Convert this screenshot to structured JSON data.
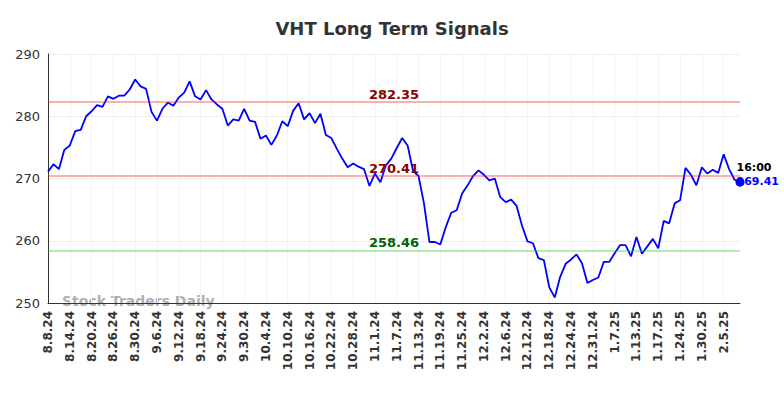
{
  "chart_data": {
    "type": "line",
    "title": "VHT Long Term Signals",
    "watermark": "Stock Traders Daily",
    "color": "#0000ff",
    "grid": true,
    "categories": [
      "8.8.24",
      null,
      null,
      null,
      "8.14.24",
      null,
      null,
      null,
      "8.20.24",
      null,
      null,
      null,
      "8.26.24",
      null,
      null,
      null,
      "8.30.24",
      null,
      null,
      null,
      "9.6.24",
      null,
      null,
      null,
      "9.12.24",
      null,
      null,
      null,
      "9.18.24",
      null,
      null,
      null,
      "9.24.24",
      null,
      null,
      null,
      "9.30.24",
      null,
      null,
      null,
      "10.4.24",
      null,
      null,
      null,
      "10.10.24",
      null,
      null,
      null,
      "10.16.24",
      null,
      null,
      null,
      "10.22.24",
      null,
      null,
      null,
      "10.28.24",
      null,
      null,
      null,
      "11.1.24",
      null,
      null,
      null,
      "11.7.24",
      null,
      null,
      null,
      "11.13.24",
      null,
      null,
      null,
      "11.19.24",
      null,
      null,
      null,
      "11.25.24",
      null,
      null,
      null,
      "12.2.24",
      null,
      null,
      null,
      "12.6.24",
      null,
      null,
      null,
      "12.12.24",
      null,
      null,
      null,
      "12.18.24",
      null,
      null,
      null,
      "12.24.24",
      null,
      null,
      null,
      "12.31.24",
      null,
      null,
      null,
      "1.7.25",
      null,
      null,
      null,
      "1.13.25",
      null,
      null,
      null,
      "1.17.25",
      null,
      null,
      null,
      "1.24.25",
      null,
      null,
      null,
      "1.30.25",
      null,
      null,
      null,
      "2.5.25",
      null,
      null,
      null
    ],
    "values": [
      271.1,
      272.3,
      271.5,
      274.6,
      275.3,
      277.6,
      277.8,
      280.0,
      280.8,
      281.8,
      281.5,
      283.2,
      282.8,
      283.3,
      283.3,
      284.3,
      285.9,
      284.8,
      284.4,
      280.7,
      279.3,
      281.2,
      282.2,
      281.7,
      283.0,
      283.8,
      285.6,
      283.2,
      282.7,
      284.2,
      282.7,
      281.9,
      281.2,
      278.5,
      279.5,
      279.3,
      281.2,
      279.3,
      279.1,
      276.4,
      276.9,
      275.4,
      276.9,
      279.2,
      278.4,
      280.9,
      282.1,
      279.5,
      280.5,
      278.9,
      280.4,
      277.0,
      276.5,
      274.8,
      273.2,
      271.8,
      272.4,
      271.9,
      271.5,
      268.8,
      270.8,
      269.4,
      272.1,
      273.2,
      274.9,
      276.5,
      275.3,
      271.2,
      270.4,
      266.0,
      259.8,
      259.8,
      259.4,
      262.2,
      264.5,
      264.9,
      267.6,
      268.9,
      270.4,
      271.3,
      270.6,
      269.7,
      270.0,
      267.0,
      266.2,
      266.6,
      265.6,
      262.4,
      259.9,
      259.6,
      257.2,
      256.9,
      252.5,
      250.9,
      254.2,
      256.3,
      257.0,
      257.8,
      256.4,
      253.2,
      253.7,
      254.1,
      256.6,
      256.6,
      258.0,
      259.3,
      259.3,
      257.5,
      260.6,
      257.9,
      259.1,
      260.3,
      258.8,
      263.2,
      262.8,
      266.0,
      266.5,
      271.7,
      270.6,
      268.9,
      271.8,
      270.8,
      271.4,
      270.9,
      273.9,
      271.5,
      269.8,
      269.41
    ],
    "end_label": "16:00",
    "reference_lines": [
      {
        "value": 282.35,
        "color": "#8b0000"
      },
      {
        "value": 270.41,
        "color": "#8b0000"
      },
      {
        "value": 258.46,
        "color": "#006400"
      }
    ],
    "ylim": [
      250,
      290
    ],
    "yticks": [
      250,
      260,
      270,
      280,
      290
    ]
  }
}
